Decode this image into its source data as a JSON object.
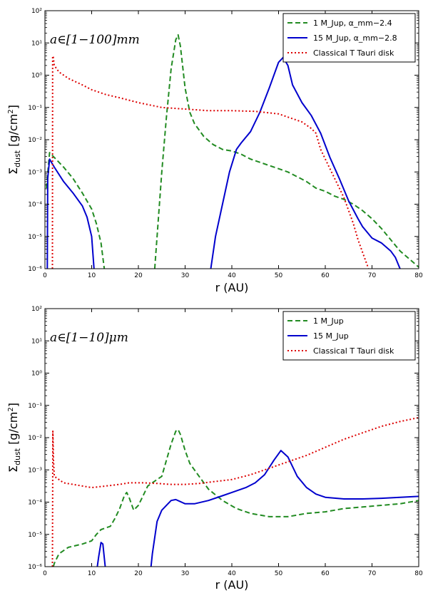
{
  "chart_data": [
    {
      "type": "line",
      "panel": "top",
      "xlabel": "r (AU)",
      "ylabel": "Σ_dust [g/cm²]",
      "xlim": [
        0,
        80
      ],
      "ylim_log10": [
        -6,
        2
      ],
      "xticks": [
        0,
        10,
        20,
        30,
        40,
        50,
        60,
        70,
        80
      ],
      "x_tick_labels": [
        "0",
        "10",
        "20",
        "30",
        "40",
        "50",
        "60",
        "70",
        "80"
      ],
      "ytick_exponents": [
        -6,
        -5,
        -4,
        -3,
        -2,
        -1,
        0,
        1,
        2
      ],
      "y_tick_labels": [
        "10⁻⁶",
        "10⁻⁵",
        "10⁻⁴",
        "10⁻³",
        "10⁻²",
        "10⁻¹",
        "10⁰",
        "10¹",
        "10²"
      ],
      "annotation": "a∈[1−100]mm",
      "legend_position": "top-right",
      "series": [
        {
          "name": "1 M_Jup, α_mm−2.4",
          "color": "#228B22",
          "dash": "dashed",
          "segments": [
            [
              [
                0.3,
                -3.5
              ],
              [
                1,
                -2.4
              ],
              [
                2,
                -2.55
              ],
              [
                4,
                -2.85
              ],
              [
                6,
                -3.2
              ],
              [
                8,
                -3.65
              ],
              [
                10,
                -4.15
              ],
              [
                11,
                -4.6
              ],
              [
                12,
                -5.2
              ],
              [
                12.7,
                -6.0
              ]
            ],
            [
              [
                23.5,
                -6.0
              ],
              [
                24,
                -5.0
              ],
              [
                25,
                -3.0
              ],
              [
                26,
                -1.3
              ],
              [
                27,
                0.2
              ],
              [
                28,
                1.1
              ],
              [
                28.5,
                1.25
              ],
              [
                29,
                0.9
              ],
              [
                30,
                -0.4
              ],
              [
                31,
                -1.15
              ],
              [
                32,
                -1.5
              ],
              [
                34,
                -1.9
              ],
              [
                36,
                -2.15
              ],
              [
                38,
                -2.3
              ],
              [
                40,
                -2.35
              ],
              [
                42,
                -2.45
              ],
              [
                44,
                -2.6
              ],
              [
                46,
                -2.7
              ],
              [
                48,
                -2.8
              ],
              [
                50,
                -2.9
              ],
              [
                52,
                -3.0
              ],
              [
                54,
                -3.15
              ],
              [
                56,
                -3.3
              ],
              [
                58,
                -3.5
              ],
              [
                60,
                -3.6
              ],
              [
                62,
                -3.75
              ],
              [
                64,
                -3.85
              ],
              [
                66,
                -4.0
              ],
              [
                68,
                -4.2
              ],
              [
                70,
                -4.45
              ],
              [
                72,
                -4.75
              ],
              [
                74,
                -5.1
              ],
              [
                76,
                -5.45
              ],
              [
                78,
                -5.7
              ],
              [
                80,
                -5.95
              ]
            ]
          ]
        },
        {
          "name": "15 M_Jup, α_mm−2.8",
          "color": "#0000CD",
          "dash": "solid",
          "segments": [
            [
              [
                0.5,
                -6.0
              ],
              [
                0.6,
                -3.2
              ],
              [
                1,
                -2.6
              ],
              [
                2,
                -2.85
              ],
              [
                4,
                -3.3
              ],
              [
                6,
                -3.65
              ],
              [
                8,
                -4.05
              ],
              [
                9,
                -4.4
              ],
              [
                10,
                -5.0
              ],
              [
                10.5,
                -6.0
              ]
            ],
            [
              [
                35.5,
                -6.0
              ],
              [
                36.5,
                -5.0
              ],
              [
                38,
                -4.0
              ],
              [
                39.5,
                -3.0
              ],
              [
                41,
                -2.3
              ],
              [
                42,
                -2.1
              ],
              [
                44,
                -1.75
              ],
              [
                46,
                -1.15
              ],
              [
                48,
                -0.4
              ],
              [
                50,
                0.4
              ],
              [
                51,
                0.55
              ],
              [
                52,
                0.3
              ],
              [
                53,
                -0.3
              ],
              [
                55,
                -0.85
              ],
              [
                57,
                -1.25
              ],
              [
                59,
                -1.8
              ],
              [
                61,
                -2.55
              ],
              [
                63,
                -3.2
              ],
              [
                65,
                -3.9
              ],
              [
                67,
                -4.45
              ],
              [
                68,
                -4.7
              ],
              [
                70,
                -5.05
              ],
              [
                72,
                -5.2
              ],
              [
                74,
                -5.45
              ],
              [
                75,
                -5.65
              ],
              [
                76,
                -6.0
              ]
            ]
          ]
        },
        {
          "name": "Classical T Tauri disk",
          "color": "#DD0000",
          "dash": "dashdot",
          "segments": [
            [
              [
                1.6,
                -6.0
              ],
              [
                1.65,
                0.6
              ],
              [
                1.8,
                0.55
              ],
              [
                2,
                0.3
              ],
              [
                3,
                0.1
              ],
              [
                5,
                -0.1
              ],
              [
                8,
                -0.3
              ],
              [
                10,
                -0.45
              ],
              [
                13,
                -0.6
              ],
              [
                16,
                -0.7
              ],
              [
                20,
                -0.85
              ],
              [
                25,
                -1.0
              ],
              [
                30,
                -1.05
              ],
              [
                35,
                -1.1
              ],
              [
                40,
                -1.1
              ],
              [
                45,
                -1.12
              ],
              [
                50,
                -1.2
              ],
              [
                52,
                -1.3
              ],
              [
                55,
                -1.45
              ],
              [
                57,
                -1.65
              ],
              [
                58,
                -1.8
              ],
              [
                59,
                -2.3
              ],
              [
                60,
                -2.6
              ],
              [
                62,
                -3.2
              ],
              [
                64,
                -3.8
              ],
              [
                65,
                -4.2
              ],
              [
                66,
                -4.6
              ],
              [
                67,
                -5.1
              ],
              [
                68,
                -5.5
              ],
              [
                69,
                -5.9
              ],
              [
                69.2,
                -6.0
              ]
            ]
          ]
        }
      ]
    },
    {
      "type": "line",
      "panel": "bottom",
      "xlabel": "r (AU)",
      "ylabel": "Σ_dust [g/cm²]",
      "xlim": [
        0,
        80
      ],
      "ylim_log10": [
        -6,
        2
      ],
      "xticks": [
        0,
        10,
        20,
        30,
        40,
        50,
        60,
        70,
        80
      ],
      "x_tick_labels": [
        "0",
        "10",
        "20",
        "30",
        "40",
        "50",
        "60",
        "70",
        "80"
      ],
      "ytick_exponents": [
        -6,
        -5,
        -4,
        -3,
        -2,
        -1,
        0,
        1,
        2
      ],
      "y_tick_labels": [
        "10⁻⁶",
        "10⁻⁵",
        "10⁻⁴",
        "10⁻³",
        "10⁻²",
        "10⁻¹",
        "10⁰",
        "10¹",
        "10²"
      ],
      "annotation": "a∈[1−10]μm",
      "legend_position": "top-right",
      "series": [
        {
          "name": "1 M_Jup",
          "color": "#228B22",
          "dash": "dashed",
          "segments": [
            [
              [
                1.8,
                -6.0
              ],
              [
                2,
                -5.9
              ],
              [
                3,
                -5.6
              ],
              [
                5,
                -5.4
              ],
              [
                8,
                -5.3
              ],
              [
                10,
                -5.2
              ],
              [
                11,
                -5.0
              ],
              [
                12,
                -4.85
              ],
              [
                14,
                -4.75
              ],
              [
                15,
                -4.5
              ],
              [
                16,
                -4.2
              ],
              [
                17,
                -3.8
              ],
              [
                17.5,
                -3.7
              ],
              [
                18,
                -3.85
              ],
              [
                19,
                -4.25
              ],
              [
                20,
                -4.1
              ],
              [
                21,
                -3.8
              ],
              [
                22,
                -3.5
              ],
              [
                24,
                -3.3
              ],
              [
                25,
                -3.2
              ],
              [
                26,
                -2.7
              ],
              [
                27,
                -2.2
              ],
              [
                28,
                -1.8
              ],
              [
                28.5,
                -1.75
              ],
              [
                29,
                -1.9
              ],
              [
                30,
                -2.4
              ],
              [
                31,
                -2.8
              ],
              [
                33,
                -3.2
              ],
              [
                35,
                -3.6
              ],
              [
                38,
                -3.95
              ],
              [
                41,
                -4.2
              ],
              [
                44,
                -4.35
              ],
              [
                48,
                -4.45
              ],
              [
                52,
                -4.45
              ],
              [
                56,
                -4.35
              ],
              [
                60,
                -4.3
              ],
              [
                64,
                -4.2
              ],
              [
                68,
                -4.15
              ],
              [
                72,
                -4.1
              ],
              [
                76,
                -4.05
              ],
              [
                80,
                -3.95
              ]
            ]
          ]
        },
        {
          "name": "15 M_Jup",
          "color": "#0000CD",
          "dash": "solid",
          "segments": [
            [
              [
                11.2,
                -6.0
              ],
              [
                11.5,
                -5.7
              ],
              [
                12,
                -5.25
              ],
              [
                12.4,
                -5.3
              ],
              [
                12.9,
                -6.0
              ]
            ],
            [
              [
                22.7,
                -6.0
              ],
              [
                23,
                -5.6
              ],
              [
                24,
                -4.6
              ],
              [
                25,
                -4.25
              ],
              [
                27,
                -3.95
              ],
              [
                28,
                -3.92
              ],
              [
                30,
                -4.05
              ],
              [
                32,
                -4.05
              ],
              [
                35,
                -3.95
              ],
              [
                38,
                -3.8
              ],
              [
                40,
                -3.7
              ],
              [
                43,
                -3.55
              ],
              [
                45,
                -3.4
              ],
              [
                47,
                -3.15
              ],
              [
                49,
                -2.7
              ],
              [
                50.5,
                -2.4
              ],
              [
                52,
                -2.6
              ],
              [
                54,
                -3.2
              ],
              [
                56,
                -3.55
              ],
              [
                58,
                -3.75
              ],
              [
                60,
                -3.85
              ],
              [
                64,
                -3.9
              ],
              [
                68,
                -3.9
              ],
              [
                72,
                -3.88
              ],
              [
                76,
                -3.85
              ],
              [
                80,
                -3.82
              ]
            ]
          ]
        },
        {
          "name": "Classical T Tauri disk",
          "color": "#DD0000",
          "dash": "dashdot",
          "segments": [
            [
              [
                1.6,
                -6.0
              ],
              [
                1.7,
                -1.8
              ],
              [
                1.8,
                -2.6
              ],
              [
                2,
                -3.2
              ],
              [
                4,
                -3.4
              ],
              [
                6,
                -3.45
              ],
              [
                10,
                -3.55
              ],
              [
                13,
                -3.5
              ],
              [
                16,
                -3.45
              ],
              [
                18,
                -3.4
              ],
              [
                21,
                -3.4
              ],
              [
                24,
                -3.42
              ],
              [
                27,
                -3.45
              ],
              [
                30,
                -3.45
              ],
              [
                33,
                -3.42
              ],
              [
                37,
                -3.35
              ],
              [
                40,
                -3.3
              ],
              [
                44,
                -3.15
              ],
              [
                48,
                -2.95
              ],
              [
                52,
                -2.75
              ],
              [
                56,
                -2.55
              ],
              [
                60,
                -2.3
              ],
              [
                64,
                -2.05
              ],
              [
                68,
                -1.85
              ],
              [
                72,
                -1.65
              ],
              [
                76,
                -1.5
              ],
              [
                80,
                -1.38
              ]
            ]
          ]
        }
      ]
    }
  ]
}
